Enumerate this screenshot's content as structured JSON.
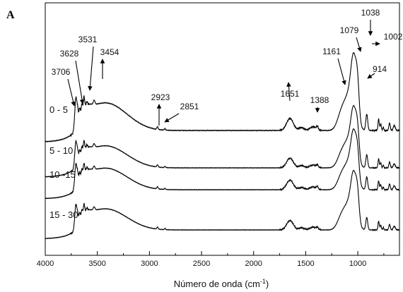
{
  "chart_data": {
    "type": "line",
    "panel_label": "A",
    "xlabel_main": "Número de onda (cm",
    "xlabel_sup": "-1",
    "xlabel_end": ")",
    "xlim": [
      4000,
      600
    ],
    "xticks": [
      4000,
      3500,
      3000,
      2500,
      2000,
      1500,
      1000
    ],
    "x_direction": "reversed",
    "y_axis_visible": false,
    "series_color": "#000000",
    "series": [
      {
        "name": "0 - 5",
        "label": "0 - 5"
      },
      {
        "name": "5 - 10",
        "label": "5 - 10"
      },
      {
        "name": "10 -15",
        "label": "10 -15"
      },
      {
        "name": "15 - 30",
        "label": "15 - 30"
      }
    ],
    "peak_annotations": [
      {
        "x": 3706,
        "label": "3706"
      },
      {
        "x": 3628,
        "label": "3628"
      },
      {
        "x": 3531,
        "label": "3531"
      },
      {
        "x": 3454,
        "label": "3454"
      },
      {
        "x": 2923,
        "label": "2923"
      },
      {
        "x": 2851,
        "label": "2851"
      },
      {
        "x": 1651,
        "label": "1651"
      },
      {
        "x": 1388,
        "label": "1388"
      },
      {
        "x": 1161,
        "label": "1161"
      },
      {
        "x": 1079,
        "label": "1079"
      },
      {
        "x": 1038,
        "label": "1038"
      },
      {
        "x": 1002,
        "label": "1002"
      },
      {
        "x": 914,
        "label": "914"
      }
    ]
  }
}
